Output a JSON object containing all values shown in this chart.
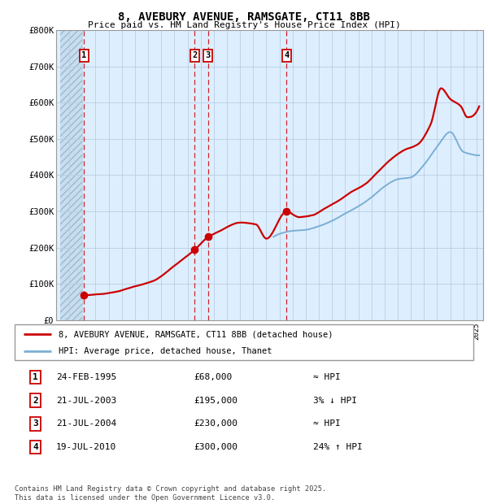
{
  "title1": "8, AVEBURY AVENUE, RAMSGATE, CT11 8BB",
  "title2": "Price paid vs. HM Land Registry's House Price Index (HPI)",
  "ylim": [
    0,
    800000
  ],
  "yticks": [
    0,
    100000,
    200000,
    300000,
    400000,
    500000,
    600000,
    700000,
    800000
  ],
  "ytick_labels": [
    "£0",
    "£100K",
    "£200K",
    "£300K",
    "£400K",
    "£500K",
    "£600K",
    "£700K",
    "£800K"
  ],
  "xlim_left": 1993.3,
  "xlim_right": 2025.5,
  "purchases": [
    {
      "date": 1995.13,
      "price": 68000,
      "label": "1"
    },
    {
      "date": 2003.55,
      "price": 195000,
      "label": "2"
    },
    {
      "date": 2004.55,
      "price": 230000,
      "label": "3"
    },
    {
      "date": 2010.54,
      "price": 300000,
      "label": "4"
    }
  ],
  "legend_line1": "8, AVEBURY AVENUE, RAMSGATE, CT11 8BB (detached house)",
  "legend_line2": "HPI: Average price, detached house, Thanet",
  "table": [
    {
      "num": "1",
      "date": "24-FEB-1995",
      "price": "£68,000",
      "rel": "≈ HPI"
    },
    {
      "num": "2",
      "date": "21-JUL-2003",
      "price": "£195,000",
      "rel": "3% ↓ HPI"
    },
    {
      "num": "3",
      "date": "21-JUL-2004",
      "price": "£230,000",
      "rel": "≈ HPI"
    },
    {
      "num": "4",
      "date": "19-JUL-2010",
      "price": "£300,000",
      "rel": "24% ↑ HPI"
    }
  ],
  "footnote": "Contains HM Land Registry data © Crown copyright and database right 2025.\nThis data is licensed under the Open Government Licence v3.0.",
  "line_color_red": "#cc0000",
  "line_color_blue": "#7bafd4",
  "purchase_dot_color": "#cc0000",
  "vline_color": "#cc0000",
  "box_color": "#cc0000",
  "grid_color": "#b8cfe0",
  "chart_bg": "#ddeeff",
  "hatch_region_end": 1995.0
}
